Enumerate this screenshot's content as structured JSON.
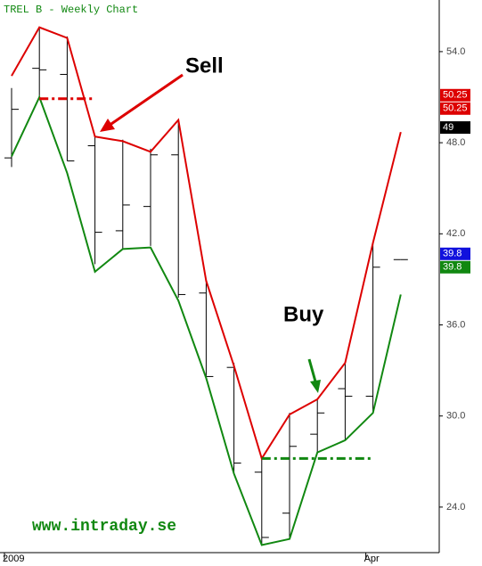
{
  "chart_data": {
    "type": "ohlc",
    "title": "TREL B - Weekly Chart",
    "categories": [
      "2009",
      null,
      null,
      null,
      null,
      null,
      null,
      null,
      null,
      null,
      null,
      null,
      null,
      "Apr",
      null
    ],
    "open": [
      47.0,
      52.9,
      52.5,
      47.8,
      42.2,
      43.8,
      47.2,
      38.1,
      33.2,
      26.3,
      23.6,
      28.8,
      31.8,
      31.3,
      40.3
    ],
    "high": [
      51.6,
      55.6,
      55.0,
      48.4,
      48.2,
      47.6,
      49.5,
      39.0,
      33.5,
      27.2,
      30.2,
      31.1,
      33.5,
      41.4,
      40.3
    ],
    "low": [
      46.4,
      50.9,
      46.8,
      40.0,
      41.0,
      41.2,
      37.8,
      32.4,
      26.3,
      21.5,
      21.9,
      27.6,
      28.4,
      30.2,
      40.3
    ],
    "close": [
      50.2,
      52.8,
      46.8,
      42.1,
      43.9,
      47.2,
      38.0,
      32.6,
      26.9,
      22.0,
      28.0,
      30.2,
      31.3,
      39.8,
      40.3
    ],
    "bar_color": "#000000",
    "series": [
      {
        "name": "Upper",
        "color": "#dd0000",
        "values": [
          52.4,
          55.6,
          54.9,
          48.4,
          48.1,
          47.4,
          49.5,
          38.9,
          33.3,
          27.2,
          30.1,
          31.1,
          33.5,
          41.4,
          48.7
        ]
      },
      {
        "name": "Lower",
        "color": "#118811",
        "values": [
          47.1,
          51.0,
          46.0,
          39.5,
          41.0,
          41.1,
          37.6,
          32.5,
          26.2,
          21.5,
          21.9,
          27.6,
          28.4,
          30.2,
          38.0
        ]
      }
    ],
    "reference_lines": [
      {
        "value": 50.9,
        "color": "#dd0000",
        "from": 1,
        "to": 3
      },
      {
        "value": 27.2,
        "color": "#118811",
        "from": 9,
        "to": 13
      }
    ],
    "price_labels": [
      {
        "value": 50.25,
        "label": "50.25",
        "color": "#dd0000"
      },
      {
        "value": 50.25,
        "label": "50.25",
        "color": "#dd0000"
      },
      {
        "value": 49,
        "label": "49",
        "color": "#000000"
      },
      {
        "value": 39.8,
        "label": "39.8",
        "color": "#118811"
      },
      {
        "value": 39.8,
        "label": "39.8",
        "color": "#1111dd"
      }
    ],
    "annotations": [
      "Sell",
      "Buy",
      "www.intraday.se"
    ],
    "ylim": [
      21.0,
      57.4
    ],
    "yticks": [
      {
        "value": 24,
        "label": "24.0"
      },
      {
        "value": 30,
        "label": "30.0"
      },
      {
        "value": 36,
        "label": "36.0"
      },
      {
        "value": 42,
        "label": "42.0"
      },
      {
        "value": 48,
        "label": "48.0"
      },
      {
        "value": 54,
        "label": "54.0"
      }
    ]
  }
}
